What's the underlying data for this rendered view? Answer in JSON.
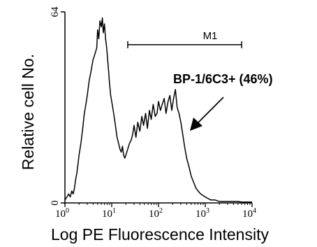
{
  "chart_data": {
    "type": "line",
    "xlabel": "Log PE Fluorescence Intensity",
    "ylabel": "Relative cell No.",
    "x_scale": "log",
    "xlim": [
      1,
      10000
    ],
    "ylim": [
      0,
      64
    ],
    "x_ticks": [
      {
        "value": 1,
        "base": "10",
        "exp": "0"
      },
      {
        "value": 10,
        "base": "10",
        "exp": "1"
      },
      {
        "value": 100,
        "base": "10",
        "exp": "2"
      },
      {
        "value": 1000,
        "base": "10",
        "exp": "3"
      },
      {
        "value": 10000,
        "base": "10",
        "exp": "4"
      }
    ],
    "y_ticks": [
      {
        "value": 0,
        "label": "0"
      },
      {
        "value": 64,
        "label": "64"
      }
    ],
    "series": [
      {
        "x": [
          1.0,
          1.1,
          1.2,
          1.3,
          1.4,
          1.5,
          1.6,
          1.7,
          1.8,
          1.9,
          2.0,
          2.2,
          2.4,
          2.6,
          2.8,
          3.0,
          3.3,
          3.6,
          4.0,
          4.4,
          4.8,
          5.0,
          5.3,
          5.6,
          6.0,
          6.3,
          6.6,
          7.0,
          7.4,
          7.8,
          8.2,
          8.6,
          9.0,
          9.5,
          10.0,
          11.0,
          12.0,
          13.0,
          14.0,
          15.0,
          16.0,
          17.0,
          18.0,
          19.0,
          20.0,
          22.0,
          24.0,
          26.0,
          28.0,
          30.0,
          33.0,
          36.0,
          40.0,
          44.0,
          48.0,
          53.0,
          58.0,
          64.0,
          70.0,
          77.0,
          85.0,
          93.0,
          100.0,
          110.0,
          120.0,
          132.0,
          145.0,
          160.0,
          175.0,
          192.0,
          210.0,
          230.0,
          250.0,
          275.0,
          300.0,
          330.0,
          360.0,
          400.0,
          450.0,
          500.0,
          560.0,
          630.0,
          700.0,
          800.0,
          1000.0,
          1300.0,
          1600.0,
          2000.0,
          3000.0,
          4000.0,
          5000.0,
          6000.0,
          7000.0,
          8000.0,
          9000.0,
          10000.0
        ],
        "y": [
          1,
          2,
          3,
          2,
          4,
          3,
          5,
          8,
          10,
          13,
          16,
          20,
          25,
          30,
          33,
          36,
          41,
          44,
          48,
          50,
          52,
          58,
          55,
          61,
          59,
          62,
          57,
          60,
          55,
          52,
          48,
          44,
          40,
          36,
          34,
          30,
          26,
          22,
          20,
          18,
          17,
          19,
          16,
          15,
          16,
          18,
          20,
          21,
          23,
          26,
          22,
          27,
          24,
          29,
          26,
          30,
          25,
          31,
          28,
          33,
          29,
          30,
          34,
          31,
          33,
          35,
          30,
          34,
          36,
          31,
          35,
          38,
          32,
          30,
          27,
          23,
          19,
          15,
          12,
          9,
          7,
          5,
          4,
          3,
          2,
          1,
          1,
          0.5,
          0.5,
          0.5,
          0.5,
          0.3,
          0.3,
          0.3,
          0.3,
          0.3
        ]
      }
    ],
    "gate": {
      "label": "M1",
      "x_start": 22,
      "x_end": 6000,
      "y": 53
    },
    "annotation": {
      "text": "BP-1/6C3+ (46%)"
    }
  }
}
